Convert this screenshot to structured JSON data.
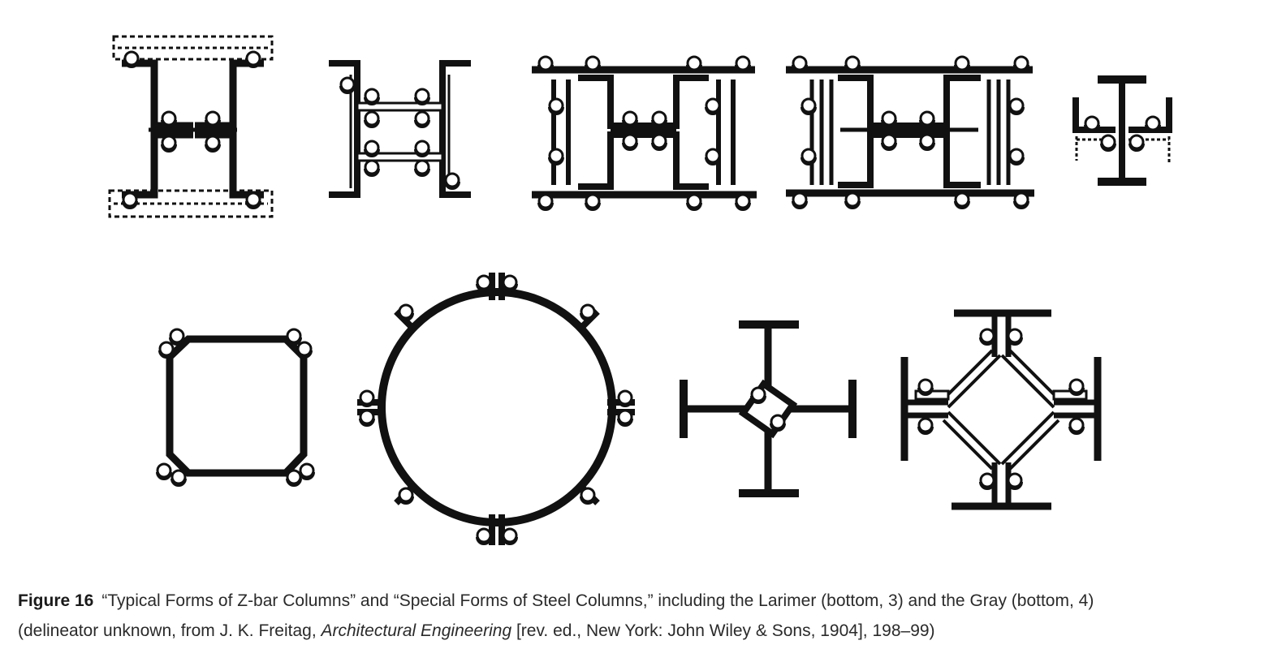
{
  "figure": {
    "label": "Figure 16",
    "caption_text_1": "“Typical Forms of Z-bar Columns” and “Special Forms of Steel Columns,” including the Larimer (bottom, 3) and the Gray (bottom, 4)",
    "caption_text_2": "(delineator unknown, from J. K. Freitag, ",
    "caption_book_title": "Architectural Engineering",
    "caption_text_3": " [rev. ed., New York: John Wiley & Sons, 1904], 198–99)",
    "top_row": [
      "z-bar-column-with-dashed-plates",
      "z-bar-column-with-tie-plates",
      "z-bar-column-double-h",
      "z-bar-column-double-h-with-web",
      "i-beam-column-with-angles"
    ],
    "bottom_row": [
      "octagonal-column",
      "circular-column",
      "larimer-column",
      "gray-column"
    ],
    "colors": {
      "ink": "#111111",
      "paper": "#ffffff",
      "caption": "#2a2a2a"
    }
  }
}
